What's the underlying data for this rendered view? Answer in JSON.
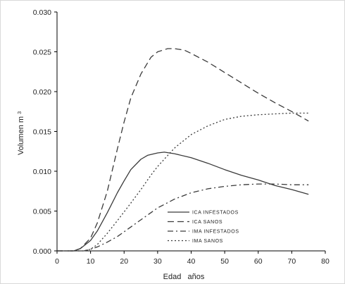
{
  "chart_data": {
    "type": "line",
    "title": "",
    "xlabel": "Edad   años",
    "ylabel_main": "Volumen m",
    "ylabel_sup": "3",
    "xlim": [
      0,
      80
    ],
    "ylim": [
      0,
      0.03
    ],
    "x_ticks": [
      0,
      10,
      20,
      30,
      40,
      50,
      60,
      70,
      80
    ],
    "y_ticks": [
      "0.000",
      "0.005",
      "0.010",
      "0.015",
      "0.020",
      "0.025",
      "0.030"
    ],
    "y_tick_values": [
      0,
      0.005,
      0.01,
      0.015,
      0.02,
      0.025,
      0.03
    ],
    "grid": false,
    "legend_position": "bottom-center",
    "series": [
      {
        "name": "ICA INFESTADOS",
        "style": "solid",
        "x": [
          0,
          5,
          7,
          10,
          12,
          15,
          18,
          20,
          22,
          25,
          27,
          30,
          32,
          35,
          40,
          45,
          50,
          55,
          60,
          65,
          70,
          75
        ],
        "y": [
          0,
          0,
          0.0003,
          0.0013,
          0.0025,
          0.0048,
          0.0073,
          0.0088,
          0.0102,
          0.0115,
          0.012,
          0.0123,
          0.0124,
          0.0122,
          0.0117,
          0.011,
          0.0102,
          0.0095,
          0.0089,
          0.0082,
          0.0077,
          0.0071
        ]
      },
      {
        "name": "ICA SANOS",
        "style": "dashed",
        "x": [
          0,
          5,
          7,
          10,
          12,
          15,
          18,
          20,
          22,
          25,
          28,
          30,
          33,
          35,
          38,
          40,
          45,
          50,
          55,
          60,
          65,
          70,
          75
        ],
        "y": [
          0,
          0,
          0.0003,
          0.0016,
          0.0035,
          0.0075,
          0.0128,
          0.0162,
          0.0192,
          0.0222,
          0.0243,
          0.025,
          0.0254,
          0.0254,
          0.0252,
          0.0248,
          0.0237,
          0.0224,
          0.0211,
          0.0198,
          0.0186,
          0.0175,
          0.0163
        ]
      },
      {
        "name": "IMA INFESTADOS",
        "style": "dashdot",
        "x": [
          0,
          5,
          8,
          10,
          12,
          15,
          18,
          20,
          25,
          30,
          35,
          40,
          45,
          50,
          55,
          60,
          65,
          70,
          75
        ],
        "y": [
          0,
          0,
          0,
          0.0002,
          0.0005,
          0.0011,
          0.0018,
          0.0024,
          0.0039,
          0.0054,
          0.0065,
          0.0073,
          0.0078,
          0.0081,
          0.0083,
          0.0084,
          0.0084,
          0.0083,
          0.0083
        ]
      },
      {
        "name": "IMA SANOS",
        "style": "dotted",
        "x": [
          0,
          5,
          8,
          10,
          12,
          15,
          18,
          20,
          22,
          25,
          28,
          30,
          35,
          40,
          45,
          50,
          55,
          60,
          65,
          70,
          75
        ],
        "y": [
          0,
          0,
          0,
          0.0002,
          0.0008,
          0.0022,
          0.0038,
          0.0049,
          0.006,
          0.0077,
          0.0095,
          0.0106,
          0.0129,
          0.0146,
          0.0157,
          0.0165,
          0.0169,
          0.0171,
          0.0172,
          0.0173,
          0.0173
        ]
      }
    ]
  }
}
